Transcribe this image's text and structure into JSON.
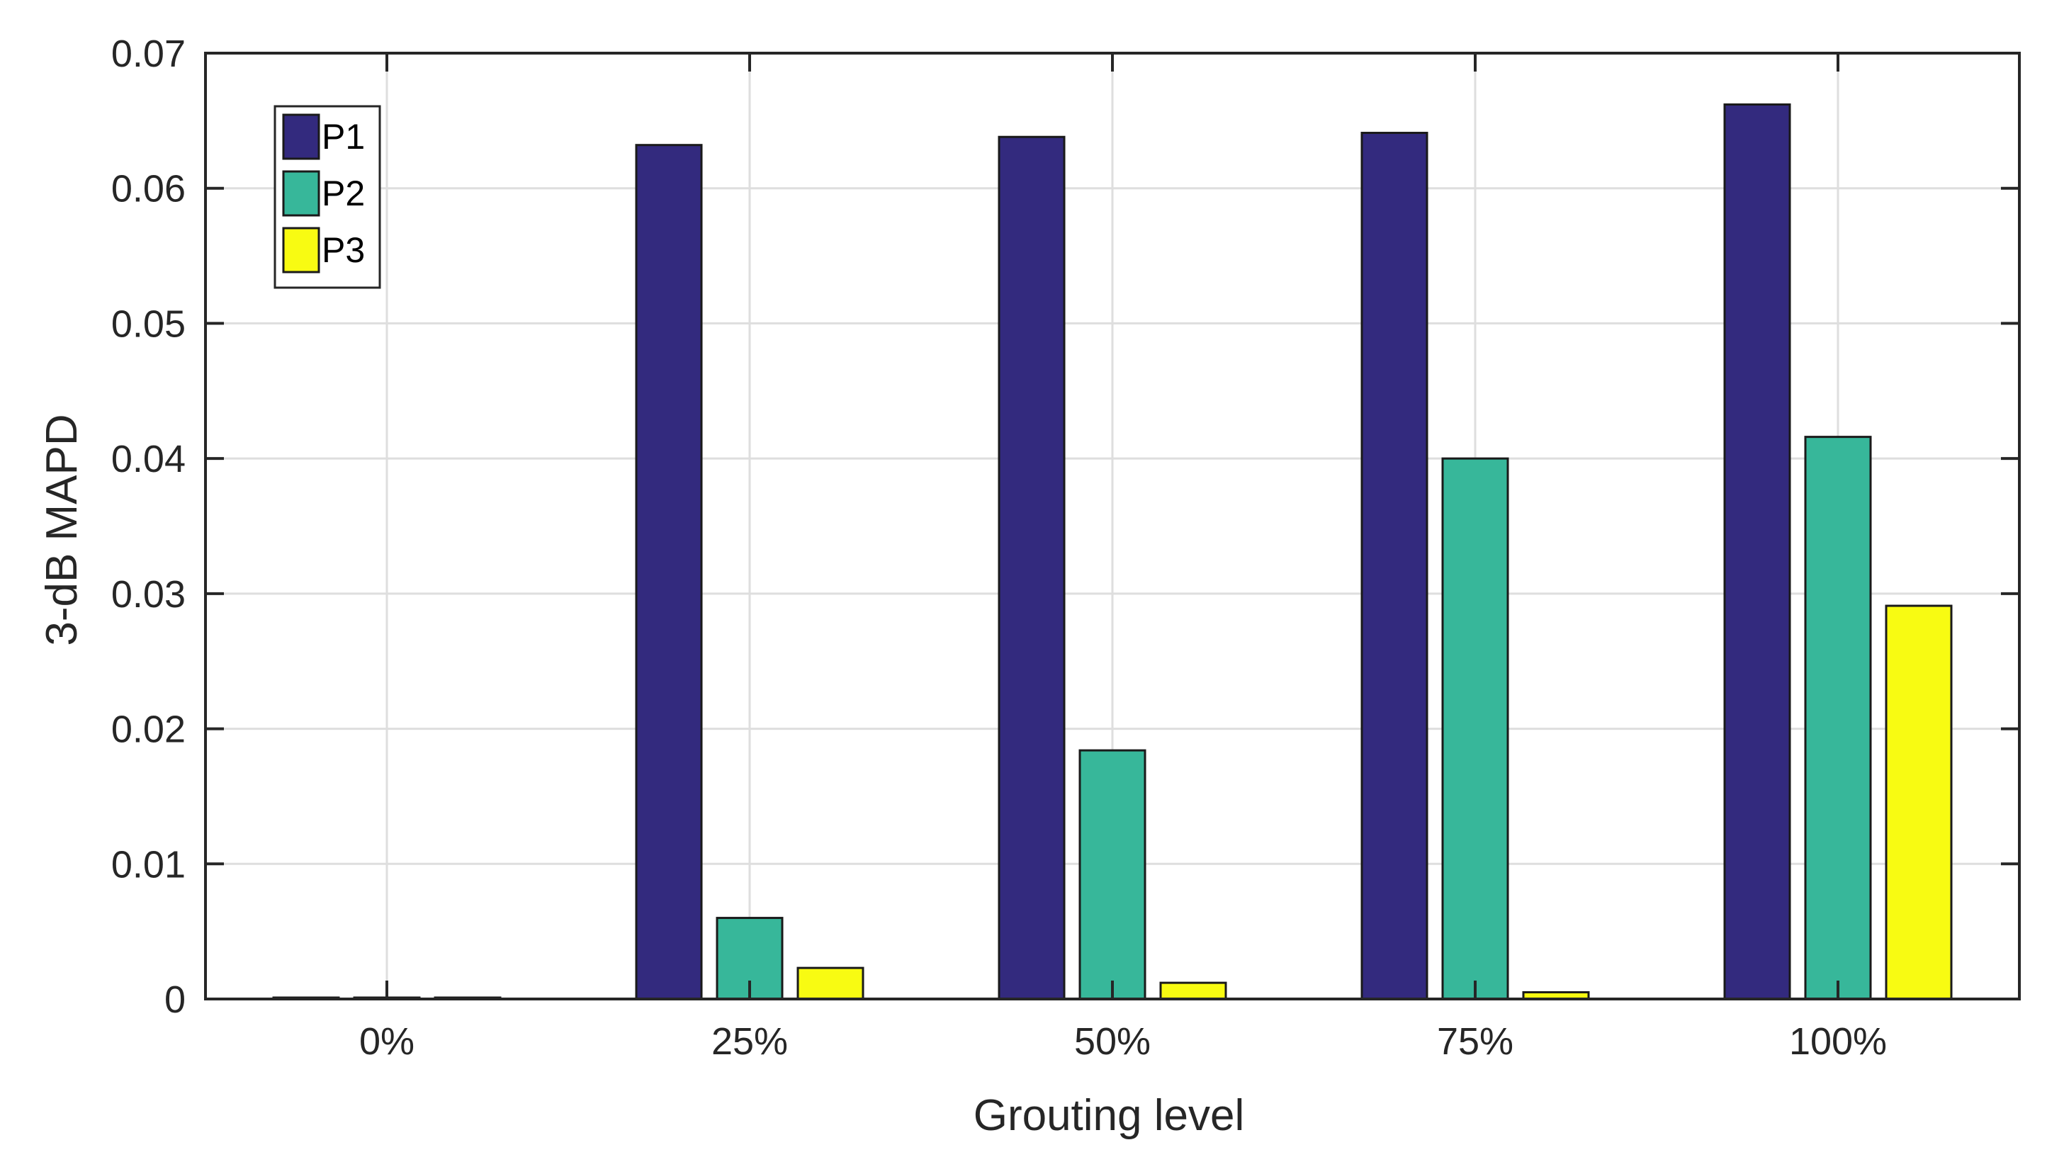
{
  "chart_data": {
    "type": "bar",
    "title": "",
    "xlabel": "Grouting level",
    "ylabel": "3-dB MAPD",
    "categories": [
      "0%",
      "25%",
      "50%",
      "75%",
      "100%"
    ],
    "ylim": [
      0,
      0.07
    ],
    "yticks": [
      "0",
      "0.01",
      "0.02",
      "0.03",
      "0.04",
      "0.05",
      "0.06",
      "0.07"
    ],
    "ytick_values": [
      0,
      0.01,
      0.02,
      0.03,
      0.04,
      0.05,
      0.06,
      0.07
    ],
    "grid": true,
    "legend_position": "top-left",
    "series": [
      {
        "name": "P1",
        "color": "#332a7e",
        "values": [
          0,
          0.0632,
          0.0638,
          0.0641,
          0.0662
        ]
      },
      {
        "name": "P2",
        "color": "#37b79a",
        "values": [
          0,
          0.006,
          0.0184,
          0.04,
          0.0416
        ]
      },
      {
        "name": "P3",
        "color": "#f8fb12",
        "values": [
          0,
          0.0023,
          0.0012,
          0.0005,
          0.0291
        ]
      }
    ]
  }
}
